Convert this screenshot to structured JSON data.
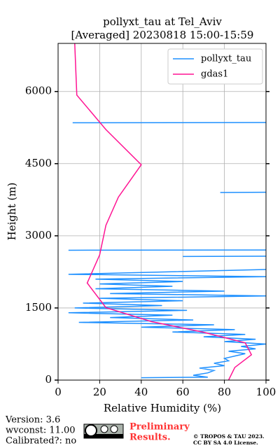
{
  "chart_data": {
    "type": "line",
    "orientation": "horizontal",
    "title": [
      "pollyxt_tau at Tel_Aviv",
      "[Averaged] 20230818 15:00-15:59"
    ],
    "xlabel": "Relative Humidity (%)",
    "ylabel": "Height (m)",
    "xlim": [
      0,
      100
    ],
    "xticks": [
      0,
      20,
      40,
      60,
      80,
      100
    ],
    "ylim": [
      0,
      7000
    ],
    "yticks": [
      0,
      1500,
      3000,
      4500,
      6000
    ],
    "grid": true,
    "legend": "upper right",
    "series": [
      {
        "name": "pollyxt_tau",
        "color": "#1e90ff",
        "y": [
          50,
          60,
          100,
          150,
          200,
          250,
          300,
          350,
          400,
          450,
          500,
          550,
          600,
          650,
          700,
          750,
          800,
          850,
          900,
          950,
          1000,
          1050,
          1100,
          1150,
          1200,
          1250,
          1300,
          1350,
          1400,
          1450,
          1500,
          1550,
          1600,
          1650,
          1700,
          1750,
          1800,
          1850,
          1900,
          1950,
          2000,
          2050,
          2100,
          2150,
          2200,
          2300,
          2310,
          2570,
          2575,
          2580,
          2700,
          2705,
          2710,
          3900,
          3905,
          3910,
          5350,
          5355
        ],
        "values": [
          40,
          72,
          65,
          72,
          75,
          68,
          80,
          75,
          82,
          80,
          85,
          90,
          82,
          95,
          88,
          100,
          80,
          95,
          70,
          90,
          55,
          85,
          40,
          75,
          10,
          65,
          25,
          55,
          5,
          62,
          8,
          50,
          12,
          60,
          20,
          100,
          25,
          80,
          18,
          55,
          20,
          60,
          18,
          100,
          5,
          100,
          null,
          60,
          100,
          null,
          5,
          100,
          null,
          78,
          100,
          null,
          7,
          100
        ]
      },
      {
        "name": "gdas1",
        "color": "#ff1493",
        "y": [
          0,
          263,
          527,
          775,
          995,
          1215,
          1507,
          2019,
          2604,
          3219,
          3804,
          4477,
          5208,
          5925,
          7000
        ],
        "values": [
          82,
          85,
          93,
          90,
          70,
          45,
          23,
          14,
          20,
          23,
          29,
          40,
          23,
          9,
          8
        ]
      }
    ]
  },
  "footer": {
    "version": "Version: 3.6",
    "wvconst": "wvconst:  11.00",
    "calibrated": "Calibrated?: no",
    "preliminary": [
      "Preliminary",
      "Results."
    ],
    "license": [
      "© TROPOS & TAU 2023.",
      "CC BY SA 4.0 License."
    ]
  }
}
